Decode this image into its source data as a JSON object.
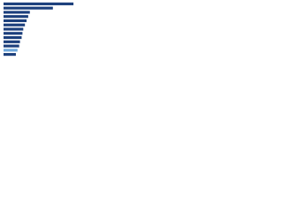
{
  "chart_data": {
    "type": "bar",
    "orientation": "horizontal",
    "categories": [
      null,
      null,
      null,
      null,
      null,
      null,
      null,
      null,
      null,
      null,
      null,
      null,
      null
    ],
    "values": [
      85,
      60,
      32,
      30,
      28,
      26,
      24,
      23,
      22,
      20,
      19,
      17,
      15
    ],
    "colors": [
      "#1c3f7c",
      "#1c3f7c",
      "#1c3f7c",
      "#1c3f7c",
      "#1c3f7c",
      "#1c3f7c",
      "#1c3f7c",
      "#1c3f7c",
      "#1c3f7c",
      "#1c3f7c",
      "#1c3f7c",
      "#6fa8dc",
      "#1c3f7c"
    ],
    "xlim": [
      0,
      100
    ]
  }
}
